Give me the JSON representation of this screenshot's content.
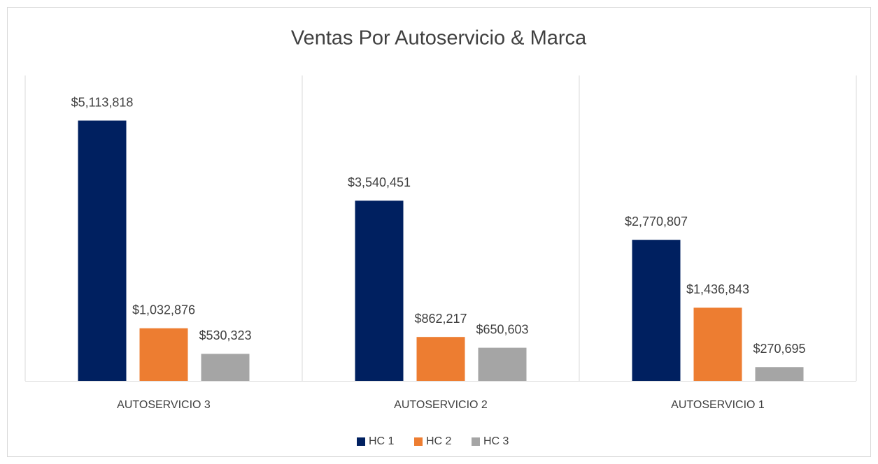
{
  "chart_data": {
    "type": "bar",
    "title": "Ventas Por Autoservicio & Marca",
    "categories": [
      "AUTOSERVICIO 3",
      "AUTOSERVICIO 2",
      "AUTOSERVICIO 1"
    ],
    "series": [
      {
        "name": "HC 1",
        "color": "#002060",
        "values": [
          5113818,
          3540451,
          2770807
        ],
        "value_labels": [
          "$5,113,818",
          "$3,540,451",
          "$2,770,807"
        ]
      },
      {
        "name": "HC 2",
        "color": "#ED7D31",
        "values": [
          1032876,
          862217,
          1436843
        ],
        "value_labels": [
          "$1,032,876",
          "$862,217",
          "$1,436,843"
        ]
      },
      {
        "name": "HC 3",
        "color": "#A5A5A5",
        "values": [
          530323,
          650603,
          270695
        ],
        "value_labels": [
          "$530,323",
          "$650,603",
          "$270,695"
        ]
      }
    ],
    "ylim": [
      0,
      6000000
    ],
    "legend": "bottom"
  }
}
